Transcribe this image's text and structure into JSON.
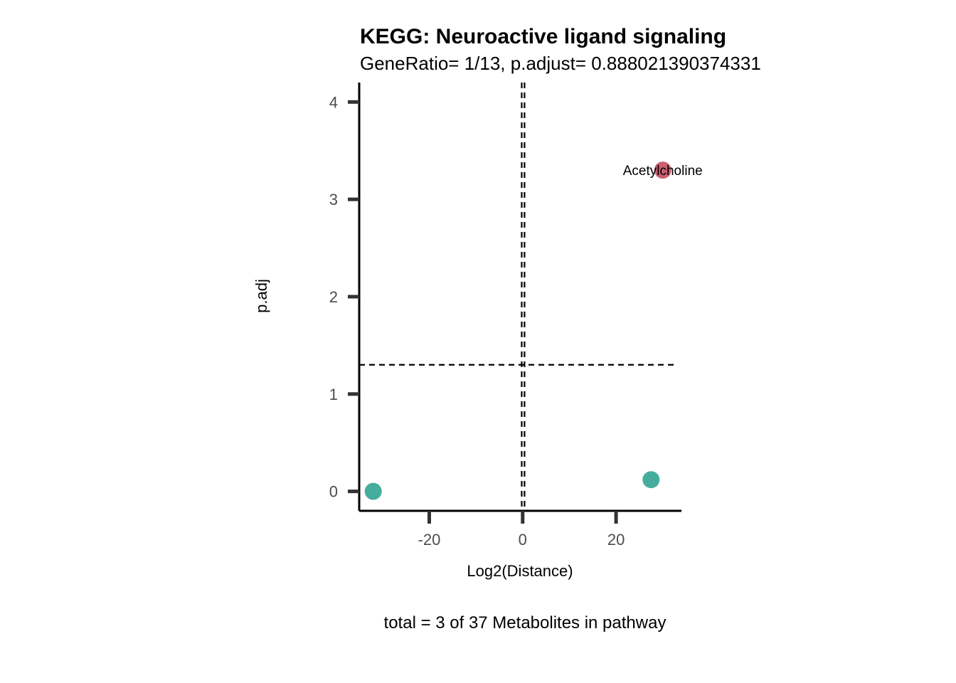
{
  "chart_data": {
    "type": "scatter",
    "title": "KEGG: Neuroactive ligand signaling",
    "subtitle": "GeneRatio= 1/13, p.adjust= 0.888021390374331",
    "xlabel": "Log2(Distance)",
    "ylabel": "p.adj",
    "caption": "total = 3 of 37 Metabolites in pathway",
    "xlim": [
      -35,
      34
    ],
    "ylim": [
      -0.2,
      4.2
    ],
    "x_ticks": [
      -20,
      0,
      20
    ],
    "x_tick_labels": [
      "-20",
      "0",
      "20"
    ],
    "y_ticks": [
      0,
      1,
      2,
      3,
      4
    ],
    "y_tick_labels": [
      "0",
      "1",
      "2",
      "3",
      "4"
    ],
    "threshold_lines": {
      "vertical": [
        -0.2,
        0.4
      ],
      "horizontal": 1.3
    },
    "points": [
      {
        "x": -32,
        "y": 0.0,
        "color": "#45ad9b",
        "label": ""
      },
      {
        "x": 27.5,
        "y": 0.12,
        "color": "#45ad9b",
        "label": ""
      },
      {
        "x": 30,
        "y": 3.3,
        "color": "#c8606f",
        "label": "Acetylcholine"
      }
    ],
    "grid": false,
    "legend": "none"
  }
}
